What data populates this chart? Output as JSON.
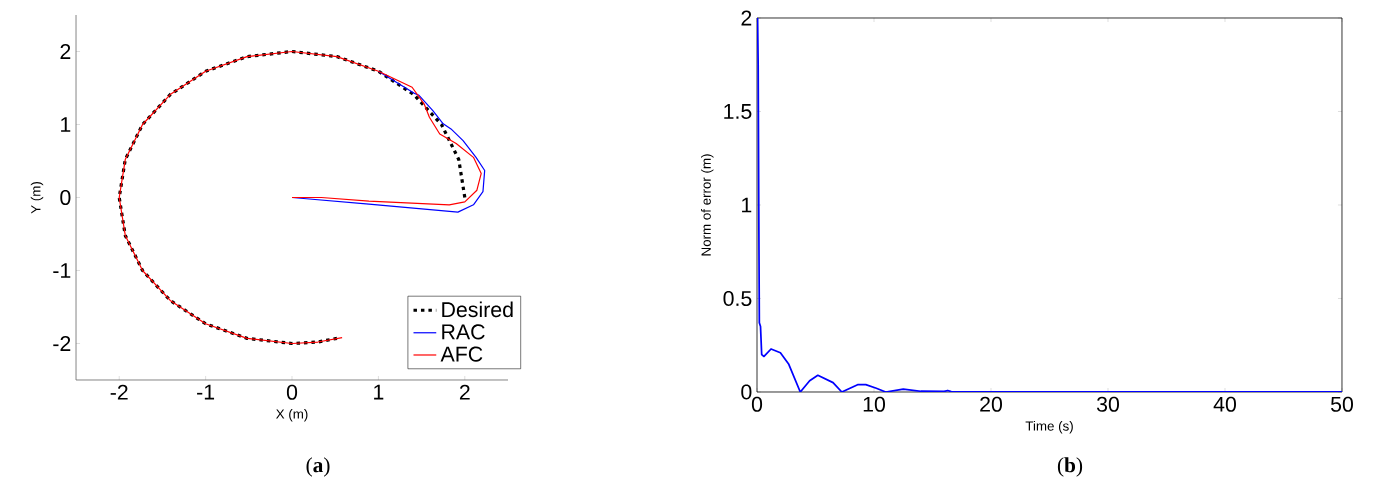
{
  "chart_data": [
    {
      "type": "line",
      "xlabel": "X (m)",
      "ylabel": "Y (m)",
      "xlim": [
        -2.5,
        2.5
      ],
      "ylim": [
        -2.5,
        2.5
      ],
      "xticks": [
        -2,
        -1,
        0,
        1,
        2
      ],
      "yticks": [
        -2,
        -1,
        0,
        1,
        2
      ],
      "legend": "bottom right",
      "annotations": [
        "(**a**)"
      ],
      "series": [
        {
          "name": "Desired",
          "color": "#000000",
          "line_style": "dotted",
          "x": [
            2,
            1.93,
            1.73,
            1.41,
            1,
            0.52,
            0,
            -0.52,
            -1,
            -1.41,
            -1.73,
            -1.93,
            -2,
            -1.93,
            -1.73,
            -1.41,
            -1,
            -0.52,
            0,
            0.3,
            0.56
          ],
          "values": [
            0,
            0.52,
            1,
            1.41,
            1.73,
            1.93,
            2,
            1.93,
            1.73,
            1.41,
            1,
            0.52,
            0,
            -0.52,
            -1,
            -1.41,
            -1.73,
            -1.93,
            -2,
            -1.98,
            -1.92
          ]
        },
        {
          "name": "RAC",
          "color": "#0000ff",
          "line_style": "solid",
          "x": [
            0,
            0.1,
            0.89,
            1.92,
            2.1,
            2.21,
            2.23,
            2.13,
            1.98,
            1.84,
            1.75,
            1.63,
            1.47,
            1.41,
            1
          ],
          "values": [
            0,
            -0.01,
            -0.09,
            -0.2,
            -0.1,
            0.08,
            0.37,
            0.55,
            0.78,
            0.94,
            1.01,
            1.19,
            1.4,
            1.43,
            1.73
          ]
        },
        {
          "name": "AFC",
          "color": "#ff0000",
          "line_style": "solid",
          "x": [
            0,
            0.34,
            0.89,
            1.82,
            2.0,
            2.14,
            2.19,
            2.1,
            1.9,
            1.71,
            1.59,
            1.53,
            1.39,
            1,
            0.52,
            0,
            -0.52,
            -1,
            -1.41,
            -1.73,
            -1.93,
            -2,
            -1.93,
            -1.73,
            -1.41,
            -1,
            -0.52,
            0,
            0.3,
            0.58
          ],
          "values": [
            0,
            0,
            -0.05,
            -0.1,
            -0.06,
            0.1,
            0.33,
            0.55,
            0.74,
            0.87,
            1.1,
            1.28,
            1.51,
            1.73,
            1.93,
            2,
            1.93,
            1.73,
            1.41,
            1,
            0.52,
            0,
            -0.52,
            -1,
            -1.41,
            -1.73,
            -1.93,
            -2,
            -1.98,
            -1.92
          ]
        }
      ]
    },
    {
      "type": "line",
      "xlabel": "Time (s)",
      "ylabel": "Norm of error (m)",
      "xlim": [
        0,
        50
      ],
      "ylim": [
        0,
        2
      ],
      "xticks": [
        0,
        10,
        20,
        30,
        40,
        50
      ],
      "yticks": [
        0,
        0.5,
        1,
        1.5,
        2
      ],
      "annotations": [
        "(**b**)"
      ],
      "color": "#0000ff",
      "x": [
        0,
        0.05,
        0.1,
        0.15,
        0.2,
        0.3,
        0.4,
        0.6,
        1.2,
        2.0,
        2.7,
        3.7,
        4.5,
        5.2,
        6.5,
        7.25,
        8.6,
        9.3,
        10.2,
        11,
        12.5,
        14,
        16,
        16.3,
        16.6,
        20,
        30,
        40,
        50
      ],
      "values": [
        2,
        2,
        1.75,
        1.0,
        0.37,
        0.35,
        0.2,
        0.19,
        0.23,
        0.21,
        0.15,
        0,
        0.06,
        0.089,
        0.05,
        0,
        0.039,
        0.039,
        0.02,
        0,
        0.015,
        0.004,
        0.003,
        0.008,
        0.002,
        0,
        0,
        0,
        0
      ]
    }
  ]
}
